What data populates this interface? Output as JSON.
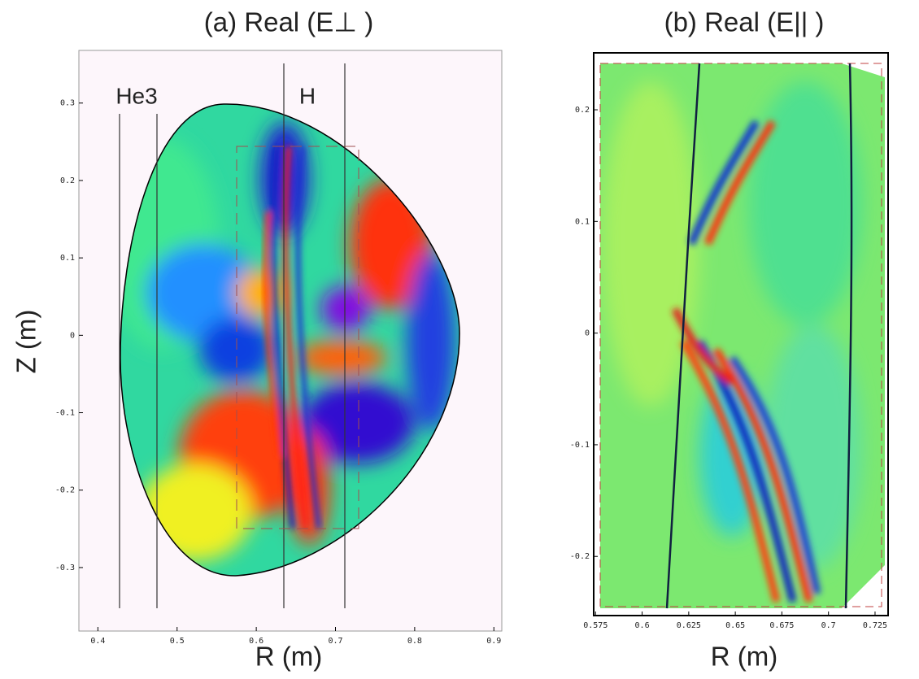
{
  "chart_data": [
    {
      "type": "contour",
      "title": "(a) Real (E⊥ )",
      "xlabel": "R (m)",
      "ylabel": "Z (m)",
      "xlim": [
        0.376,
        0.91
      ],
      "ylim": [
        -0.382,
        0.368
      ],
      "xticks": [
        0.4,
        0.5,
        0.6,
        0.7,
        0.8,
        0.9
      ],
      "yticks": [
        -0.3,
        -0.2,
        -0.1,
        0,
        0.1,
        0.2,
        0.3
      ],
      "annotations": [
        "He3",
        "H"
      ]
    },
    {
      "type": "contour",
      "title": "(b) Real (E|| )",
      "xlabel": "R (m)",
      "xlim": [
        0.574,
        0.732
      ],
      "ylim": [
        -0.253,
        0.251
      ],
      "xticks": [
        0.575,
        0.6,
        0.625,
        0.65,
        0.675,
        0.7,
        0.725
      ],
      "yticks": [
        -0.2,
        -0.1,
        0,
        0.1,
        0.2
      ]
    }
  ]
}
